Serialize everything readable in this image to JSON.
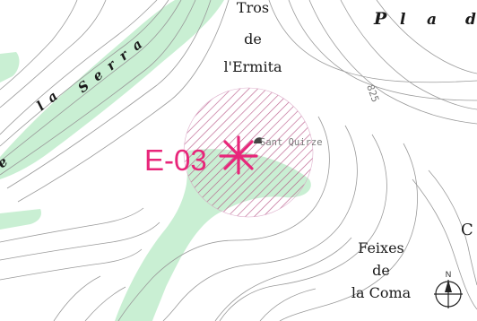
{
  "map": {
    "colors": {
      "contour": "#9a9a9a",
      "vegetation": "#c9efd3",
      "marker": "#e8267a",
      "hatch": "#b0457a",
      "text": "#1a1a1a"
    },
    "labels": {
      "serra_word1": "la",
      "serra_word2": "Serra",
      "serra_e": "e",
      "pla_p": "P",
      "pla_l": "l",
      "pla_a": "a",
      "pla_d": "d",
      "tros_line1": "Tros",
      "tros_line2": "de",
      "tros_line3": "l'Ermita",
      "sant_quirze": "Sant Quirze",
      "contour_value": "825",
      "feixes_line1": "Feixes",
      "feixes_line2": "de",
      "feixes_line3": "la Coma",
      "c_letter": "C",
      "north_letter": "N"
    },
    "marker": {
      "id_label": "E-03",
      "icon": "asterisk-marker-icon"
    },
    "compass": {
      "icon": "north-arrow-icon"
    }
  }
}
